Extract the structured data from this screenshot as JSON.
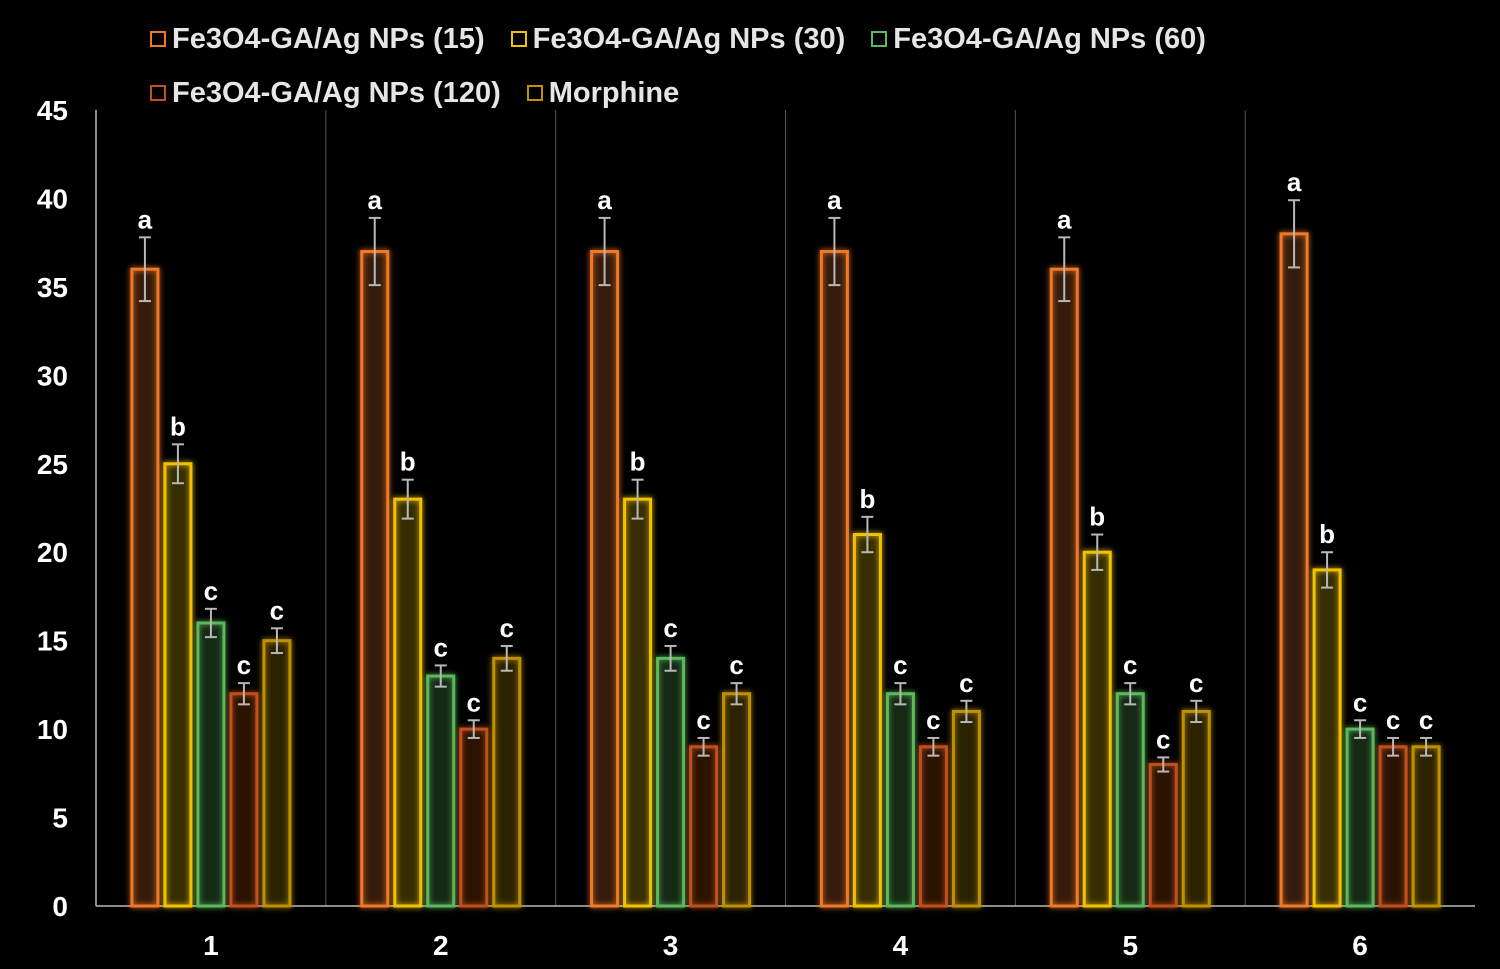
{
  "chart_data": {
    "type": "bar",
    "categories": [
      "1",
      "2",
      "3",
      "4",
      "5",
      "6"
    ],
    "ylim": [
      0,
      45
    ],
    "yticks": [
      "0",
      "5",
      "10",
      "15",
      "20",
      "25",
      "30",
      "35",
      "40",
      "45"
    ],
    "legend_position": "top",
    "grid": "vertical category separators",
    "series": [
      {
        "name": "Fe3O4-GA/Ag NPs (15)",
        "color": "#f07828",
        "values": [
          36,
          37,
          37,
          37,
          36,
          38
        ],
        "errors": [
          1.8,
          1.9,
          1.9,
          1.9,
          1.8,
          1.9
        ],
        "letters": [
          "a",
          "a",
          "a",
          "a",
          "a",
          "a"
        ]
      },
      {
        "name": "Fe3O4-GA/Ag NPs (30)",
        "color": "#f2c200",
        "values": [
          25,
          23,
          23,
          21,
          20,
          19
        ],
        "errors": [
          1.1,
          1.1,
          1.1,
          1.0,
          1.0,
          1.0
        ],
        "letters": [
          "b",
          "b",
          "b",
          "b",
          "b",
          "b"
        ]
      },
      {
        "name": "Fe3O4-GA/Ag NPs (60)",
        "color": "#5cb85c",
        "values": [
          16,
          13,
          14,
          12,
          12,
          10
        ],
        "errors": [
          0.8,
          0.6,
          0.7,
          0.6,
          0.6,
          0.5
        ],
        "letters": [
          "c",
          "c",
          "c",
          "c",
          "c",
          "c"
        ]
      },
      {
        "name": "Fe3O4-GA/Ag NPs (120)",
        "color": "#c0501e",
        "values": [
          12,
          10,
          9,
          9,
          8,
          9
        ],
        "errors": [
          0.6,
          0.5,
          0.5,
          0.5,
          0.4,
          0.5
        ],
        "letters": [
          "c",
          "c",
          "c",
          "c",
          "c",
          "c"
        ]
      },
      {
        "name": "Morphine",
        "color": "#bf9000",
        "values": [
          15,
          14,
          12,
          11,
          11,
          9
        ],
        "errors": [
          0.7,
          0.7,
          0.6,
          0.6,
          0.6,
          0.5
        ],
        "letters": [
          "c",
          "c",
          "c",
          "c",
          "c",
          "c"
        ]
      }
    ]
  }
}
